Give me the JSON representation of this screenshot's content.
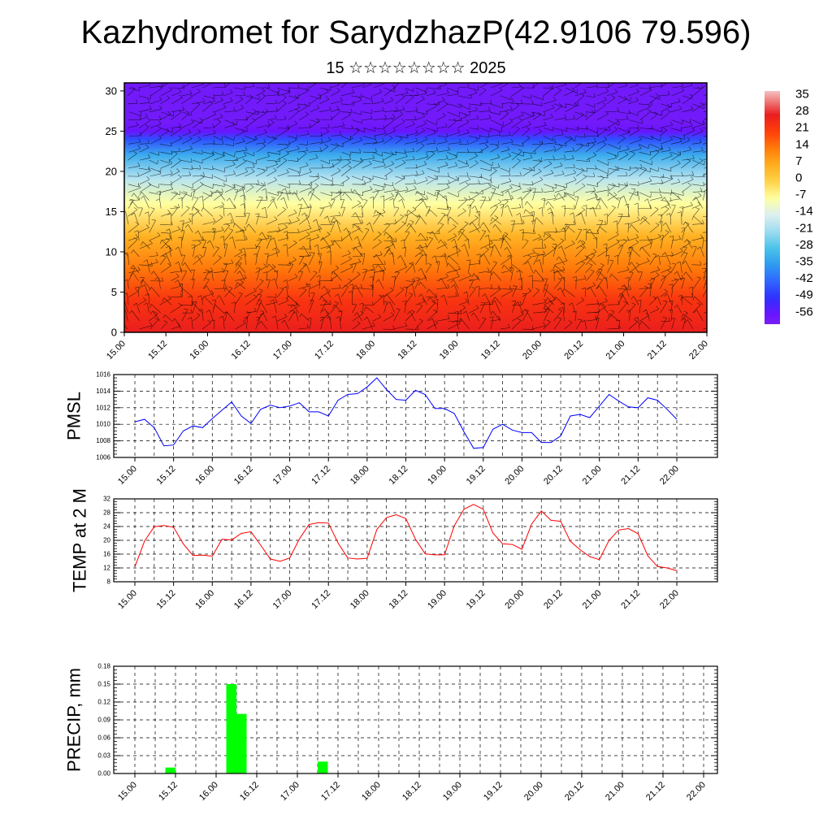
{
  "header": {
    "title": "Kazhydromet for SarydzhazP(42.9106 79.596)",
    "subtitle": "15 ☆☆☆☆☆☆☆☆ 2025"
  },
  "chart_data": [
    {
      "type": "heatmap",
      "title": "",
      "xlabel": "",
      "ylabel": "",
      "x_tick_labels": [
        "15.00",
        "15.12",
        "16.00",
        "16.12",
        "17.00",
        "17.12",
        "18.00",
        "18.12",
        "19.00",
        "19.12",
        "20.00",
        "20.12",
        "21.00",
        "21.12",
        "22.00"
      ],
      "ylim": [
        0,
        31
      ],
      "y_ticks": [
        0,
        5,
        10,
        15,
        20,
        25,
        30
      ],
      "colorbar": {
        "labels": [
          "35",
          "28",
          "21",
          "14",
          "7",
          "0",
          "-7",
          "-14",
          "-21",
          "-28",
          "-35",
          "-42",
          "-49",
          "-56"
        ],
        "range": [
          -60,
          38
        ]
      },
      "temperature_profile": [
        {
          "level": 0,
          "value": 28
        },
        {
          "level": 4,
          "value": 23
        },
        {
          "level": 8,
          "value": 14
        },
        {
          "level": 12,
          "value": 6
        },
        {
          "level": 16,
          "value": -7
        },
        {
          "level": 19,
          "value": -18
        },
        {
          "level": 22,
          "value": -32
        },
        {
          "level": 24,
          "value": -45
        },
        {
          "level": 25,
          "value": -56
        },
        {
          "level": 26,
          "value": -58
        },
        {
          "level": 31,
          "value": -58
        }
      ],
      "overlay": "wind barbs"
    },
    {
      "type": "line",
      "ylabel": "PMSL",
      "ylim": [
        1006,
        1016
      ],
      "y_ticks": [
        1006,
        1008,
        1010,
        1012,
        1014,
        1016
      ],
      "x_tick_labels": [
        "15.00",
        "15.12",
        "16.00",
        "16.12",
        "17.00",
        "17.12",
        "18.00",
        "18.12",
        "19.00",
        "19.12",
        "20.00",
        "20.12",
        "21.00",
        "21.12",
        "22.00"
      ],
      "color": "#0000ff",
      "values": [
        1010.3,
        1010.6,
        1009.6,
        1007.4,
        1007.5,
        1009.2,
        1009.8,
        1009.6,
        1010.7,
        1011.7,
        1012.7,
        1011.0,
        1010.1,
        1011.8,
        1012.3,
        1012.0,
        1012.2,
        1012.6,
        1011.5,
        1011.5,
        1011.0,
        1012.9,
        1013.6,
        1013.7,
        1014.5,
        1015.6,
        1014.2,
        1013.0,
        1012.9,
        1014.1,
        1013.6,
        1011.9,
        1011.9,
        1011.3,
        1009.1,
        1007.1,
        1007.2,
        1009.4,
        1010.0,
        1009.3,
        1009.0,
        1009.0,
        1007.8,
        1007.8,
        1008.6,
        1011.0,
        1011.2,
        1010.8,
        1012.2,
        1013.6,
        1012.8,
        1012.1,
        1012.0,
        1013.2,
        1012.9,
        1011.8,
        1010.6
      ]
    },
    {
      "type": "line",
      "ylabel": "TEMP at 2 M",
      "ylim": [
        8,
        32
      ],
      "y_ticks": [
        8,
        12,
        16,
        20,
        24,
        28,
        32
      ],
      "x_tick_labels": [
        "15.00",
        "15.12",
        "16.00",
        "16.12",
        "17.00",
        "17.12",
        "18.00",
        "18.12",
        "19.00",
        "19.12",
        "20.00",
        "20.12",
        "21.00",
        "21.12",
        "22.00"
      ],
      "color": "#ff0000",
      "values": [
        12.3,
        19.8,
        23.9,
        24.3,
        23.8,
        19.0,
        15.6,
        15.7,
        15.4,
        20.3,
        20.1,
        22.0,
        22.5,
        18.6,
        14.6,
        13.9,
        14.9,
        20.4,
        24.6,
        25.1,
        25.0,
        19.2,
        14.9,
        14.6,
        14.8,
        23.1,
        26.6,
        27.4,
        26.3,
        20.3,
        16.1,
        15.8,
        15.8,
        24.2,
        29.0,
        30.4,
        29.0,
        22.1,
        19.0,
        18.8,
        17.4,
        24.7,
        28.5,
        25.8,
        25.5,
        19.7,
        17.3,
        15.3,
        14.4,
        20.0,
        23.0,
        23.4,
        21.9,
        15.5,
        12.4,
        12.0,
        11.2
      ]
    },
    {
      "type": "bar",
      "ylabel": "PRECIP, mm",
      "ylim": [
        0,
        0.18
      ],
      "y_ticks": [
        "0.00",
        "0.03",
        "0.06",
        "0.09",
        "0.12",
        "0.15",
        "0.18"
      ],
      "x_tick_labels": [
        "15.00",
        "15.12",
        "16.00",
        "16.12",
        "17.00",
        "17.12",
        "18.00",
        "18.12",
        "19.00",
        "19.12",
        "20.00",
        "20.12",
        "21.00",
        "21.12",
        "22.00"
      ],
      "color": "#00ff00",
      "bars": [
        {
          "hour_offset": 9,
          "value": 0.01
        },
        {
          "hour_offset": 27,
          "value": 0.15
        },
        {
          "hour_offset": 30,
          "value": 0.1
        },
        {
          "hour_offset": 54,
          "value": 0.02
        }
      ]
    }
  ]
}
